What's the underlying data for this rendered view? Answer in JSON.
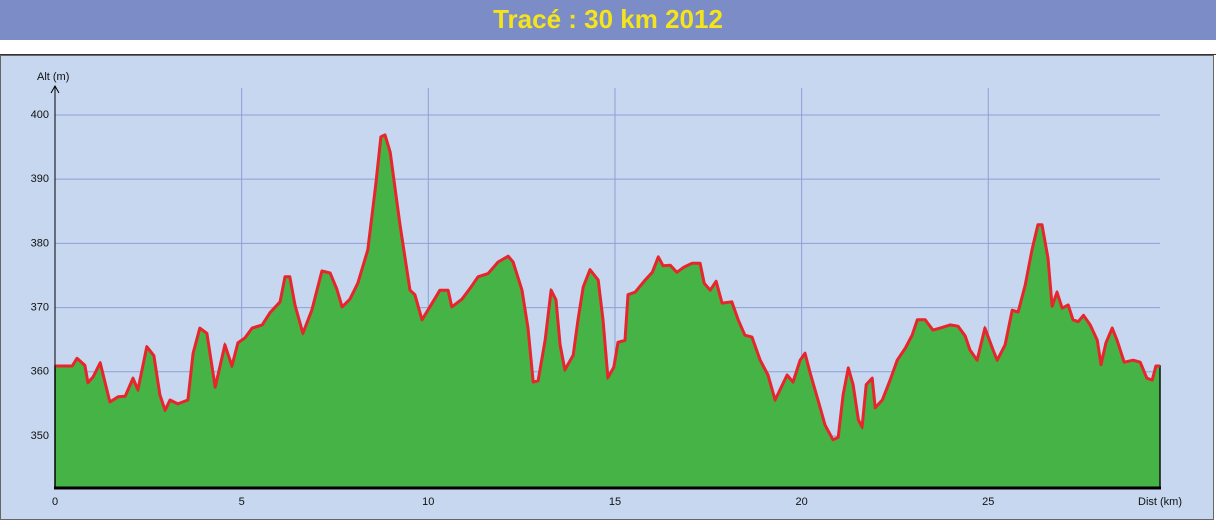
{
  "chart_data": {
    "type": "area",
    "title": "Tracé : 30 km 2012",
    "y_label": "Alt (m)",
    "x_label": "Dist (km)",
    "x": [
      0,
      0.46,
      0.59,
      0.8,
      0.88,
      1.02,
      1.21,
      1.47,
      1.69,
      1.88,
      2.09,
      2.22,
      2.46,
      2.65,
      2.81,
      2.95,
      3.08,
      3.29,
      3.56,
      3.7,
      3.88,
      4.07,
      4.29,
      4.55,
      4.74,
      4.9,
      5.09,
      5.28,
      5.55,
      5.76,
      6.03,
      6.16,
      6.29,
      6.43,
      6.64,
      6.88,
      7.15,
      7.37,
      7.55,
      7.69,
      7.9,
      8.11,
      8.38,
      8.59,
      8.73,
      8.84,
      8.98,
      9.24,
      9.51,
      9.64,
      9.83,
      10.05,
      10.31,
      10.53,
      10.63,
      10.9,
      11.12,
      11.33,
      11.6,
      11.87,
      12.14,
      12.27,
      12.51,
      12.67,
      12.81,
      12.94,
      13.13,
      13.29,
      13.42,
      13.53,
      13.66,
      13.88,
      14.01,
      14.15,
      14.33,
      14.55,
      14.68,
      14.81,
      14.97,
      15.08,
      15.27,
      15.35,
      15.54,
      15.81,
      16.0,
      16.16,
      16.29,
      16.48,
      16.66,
      16.85,
      17.06,
      17.28,
      17.39,
      17.55,
      17.71,
      17.87,
      18.13,
      18.3,
      18.48,
      18.67,
      18.89,
      19.1,
      19.29,
      19.42,
      19.61,
      19.77,
      19.96,
      20.09,
      20.23,
      20.44,
      20.63,
      20.84,
      20.98,
      21.11,
      21.25,
      21.38,
      21.52,
      21.62,
      21.73,
      21.89,
      21.97,
      22.16,
      22.37,
      22.56,
      22.78,
      22.96,
      23.1,
      23.31,
      23.52,
      23.71,
      23.98,
      24.19,
      24.38,
      24.51,
      24.7,
      24.91,
      25.13,
      25.24,
      25.45,
      25.64,
      25.8,
      25.99,
      26.17,
      26.33,
      26.44,
      26.6,
      26.71,
      26.84,
      26.98,
      27.14,
      27.27,
      27.41,
      27.55,
      27.73,
      27.92,
      28.02,
      28.15,
      28.32,
      28.45,
      28.64,
      28.88,
      29.07,
      29.25,
      29.39,
      29.49,
      29.6
    ],
    "values": [
      360.9,
      360.9,
      362.1,
      361,
      358.3,
      359.2,
      361.4,
      355.3,
      356.1,
      356.2,
      359,
      357.2,
      363.9,
      362.5,
      356.4,
      354,
      355.6,
      355,
      355.6,
      362.9,
      366.8,
      366,
      357.6,
      364.2,
      360.9,
      364.5,
      365.3,
      366.8,
      367.3,
      369.2,
      370.9,
      374.8,
      374.8,
      370.4,
      366,
      369.6,
      375.7,
      375.4,
      372.9,
      370.1,
      371.3,
      373.8,
      379,
      389.1,
      396.6,
      396.9,
      394.2,
      383,
      372.7,
      372,
      368.1,
      370.2,
      372.7,
      372.7,
      370.1,
      371.3,
      373,
      374.8,
      375.3,
      377.1,
      378,
      377.1,
      372.7,
      366.8,
      358.4,
      358.6,
      365,
      372.7,
      371.2,
      364.2,
      360.3,
      362.6,
      368.1,
      373.2,
      375.9,
      374.3,
      368.1,
      359.1,
      360.7,
      364.6,
      364.9,
      372,
      372.4,
      374.3,
      375.5,
      377.9,
      376.5,
      376.6,
      375.5,
      376.3,
      376.9,
      376.9,
      373.8,
      372.7,
      374.1,
      370.7,
      370.9,
      368.1,
      365.7,
      365.4,
      361.8,
      359.5,
      355.6,
      357.2,
      359.5,
      358.4,
      361.8,
      362.9,
      359.8,
      355.6,
      351.7,
      349.4,
      349.8,
      356.4,
      360.6,
      358,
      352.5,
      351.4,
      358,
      359,
      354.4,
      355.6,
      358.7,
      361.8,
      363.7,
      365.7,
      368.1,
      368.1,
      366.5,
      366.8,
      367.3,
      367.1,
      365.6,
      363.4,
      361.8,
      366.8,
      363.4,
      361.8,
      364.2,
      369.6,
      369.3,
      373.5,
      379,
      382.9,
      382.9,
      377.7,
      370.2,
      372.4,
      369.9,
      370.4,
      368.1,
      367.8,
      368.8,
      367.3,
      364.9,
      361.1,
      364.5,
      366.8,
      364.9,
      361.5,
      361.8,
      361.5,
      359,
      358.7,
      360.9,
      360.9
    ],
    "fill": "#46b346",
    "color": "#e8242c",
    "xlim": [
      0,
      29.6
    ],
    "ylim": [
      341.9,
      404.2
    ],
    "xticks": [
      0,
      5,
      10,
      15,
      20,
      25
    ],
    "yticks": [
      350,
      360,
      370,
      380,
      390,
      400
    ],
    "grid": true
  }
}
